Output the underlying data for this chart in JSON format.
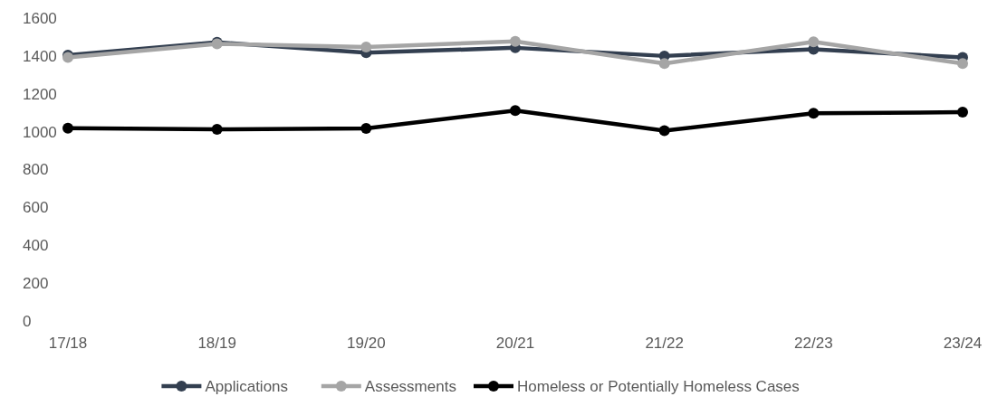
{
  "chart_data": {
    "type": "line",
    "categories": [
      "17/18",
      "18/19",
      "19/20",
      "20/21",
      "21/22",
      "22/23",
      "23/24"
    ],
    "series": [
      {
        "name": "Applications",
        "color": "#333f50",
        "values": [
          1404,
          1472,
          1417,
          1443,
          1400,
          1435,
          1392
        ]
      },
      {
        "name": "Assessments",
        "color": "#a5a5a5",
        "values": [
          1392,
          1464,
          1447,
          1477,
          1360,
          1475,
          1360
        ]
      },
      {
        "name": "Homeless or Potentially Homeless Cases",
        "color": "#000000",
        "values": [
          1019,
          1012,
          1017,
          1112,
          1005,
          1097,
          1103
        ]
      }
    ],
    "ylim": [
      0,
      1600
    ],
    "yticks": [
      0,
      200,
      400,
      600,
      800,
      1000,
      1200,
      1400,
      1600
    ],
    "grid": false,
    "legend": "bottom",
    "marker": "circle",
    "line_style": "solid"
  }
}
